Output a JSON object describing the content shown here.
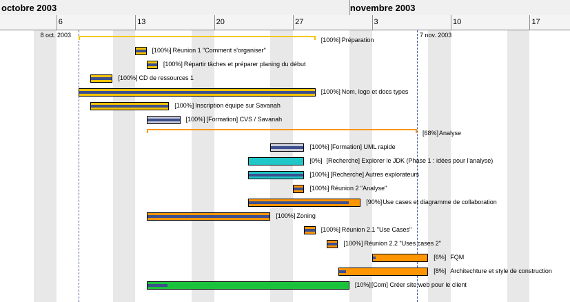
{
  "timeline": {
    "months": [
      {
        "label": "octobre  2003",
        "day": 0.1
      },
      {
        "label": "novembre  2003",
        "day": 31
      }
    ],
    "weeks": [
      {
        "label": "6",
        "day": 5
      },
      {
        "label": "13",
        "day": 12
      },
      {
        "label": "20",
        "day": 19
      },
      {
        "label": "27",
        "day": 26
      },
      {
        "label": "3",
        "day": 33
      },
      {
        "label": "10",
        "day": 40
      },
      {
        "label": "17",
        "day": 47
      }
    ],
    "markers": [
      {
        "label": "8 oct. 2003",
        "day": 7
      },
      {
        "label": "7 nov. 2003",
        "day": 37
      }
    ]
  },
  "colors": {
    "yellow": "#f5c400",
    "orange": "#ff9500",
    "cyan": "#1ec8c8",
    "silver": "#c8cad8",
    "green": "#19c23a",
    "progress": "#3d4f8e"
  },
  "tasks": [
    {
      "name": "Préparation",
      "pct": "[100%]",
      "start": 7,
      "end": 28,
      "kind": "summary",
      "color": "yellow",
      "progress": 1.0
    },
    {
      "name": "Réunion 1 \"Comment s'organiser\"",
      "pct": "[100%]",
      "start": 12,
      "end": 13,
      "kind": "bar",
      "color": "yellow",
      "progress": 1.0
    },
    {
      "name": "Répartir tâches et préparer planing du début",
      "pct": "[100%]",
      "start": 13,
      "end": 14,
      "kind": "bar",
      "color": "yellow",
      "progress": 1.0
    },
    {
      "name": "CD de ressources 1",
      "pct": "[100%]",
      "start": 8,
      "end": 10,
      "kind": "bar",
      "color": "yellow",
      "progress": 1.0
    },
    {
      "name": "Nom, logo et docs types",
      "pct": "[100%]",
      "start": 7,
      "end": 28,
      "kind": "bar",
      "color": "yellow",
      "progress": 1.0
    },
    {
      "name": "Inscription équipe sur Savanah",
      "pct": "[100%]",
      "start": 8,
      "end": 15,
      "kind": "bar",
      "color": "yellow",
      "progress": 1.0
    },
    {
      "name": "[Formation] CVS / Savanah",
      "pct": "[100%]",
      "start": 13,
      "end": 16,
      "kind": "bar",
      "color": "silver",
      "progress": 1.0
    },
    {
      "name": "Analyse",
      "pct": "[68%]",
      "start": 13,
      "end": 37,
      "kind": "summary",
      "color": "orange",
      "progress": 0.68
    },
    {
      "name": "[Formation] UML rapide",
      "pct": "[100%]",
      "start": 24,
      "end": 27,
      "kind": "bar",
      "color": "silver",
      "progress": 1.0
    },
    {
      "name": "[Recherche] Explorer le JDK (Phase 1 : idées pour l'analyse)",
      "pct": "[0%]",
      "start": 22,
      "end": 27,
      "kind": "bar",
      "color": "cyan",
      "progress": 0.0
    },
    {
      "name": "[Recherche] Autres explorateurs",
      "pct": "[100%]",
      "start": 22,
      "end": 27,
      "kind": "bar",
      "color": "cyan",
      "progress": 1.0
    },
    {
      "name": "Réunion 2 \"Analyse\"",
      "pct": "[100%]",
      "start": 26,
      "end": 27,
      "kind": "bar",
      "color": "orange",
      "progress": 1.0
    },
    {
      "name": "Use cases et diagramme de collaboration",
      "pct": "[90%]",
      "start": 22,
      "end": 32,
      "kind": "bar",
      "color": "orange",
      "progress": 0.9
    },
    {
      "name": "Zoning",
      "pct": "[100%]",
      "start": 13,
      "end": 24,
      "kind": "bar",
      "color": "orange",
      "progress": 1.0
    },
    {
      "name": "Réunion 2.1 \"Use Cases\"",
      "pct": "[100%]",
      "start": 27,
      "end": 28,
      "kind": "bar",
      "color": "orange",
      "progress": 1.0
    },
    {
      "name": "Réunion 2.2 \"Uses cases 2\"",
      "pct": "[100%]",
      "start": 29,
      "end": 30,
      "kind": "bar",
      "color": "orange",
      "progress": 1.0
    },
    {
      "name": "FQM",
      "pct": "[6%]",
      "start": 33,
      "end": 38,
      "kind": "bar",
      "color": "orange",
      "progress": 0.06
    },
    {
      "name": "Architechture et style de construction",
      "pct": "[8%]",
      "start": 30,
      "end": 38,
      "kind": "bar",
      "color": "orange",
      "progress": 0.08
    },
    {
      "name": "[Com] Créer site web pour le client",
      "pct": "[10%]",
      "start": 13,
      "end": 31,
      "kind": "bar",
      "color": "green",
      "progress": 0.1
    }
  ]
}
